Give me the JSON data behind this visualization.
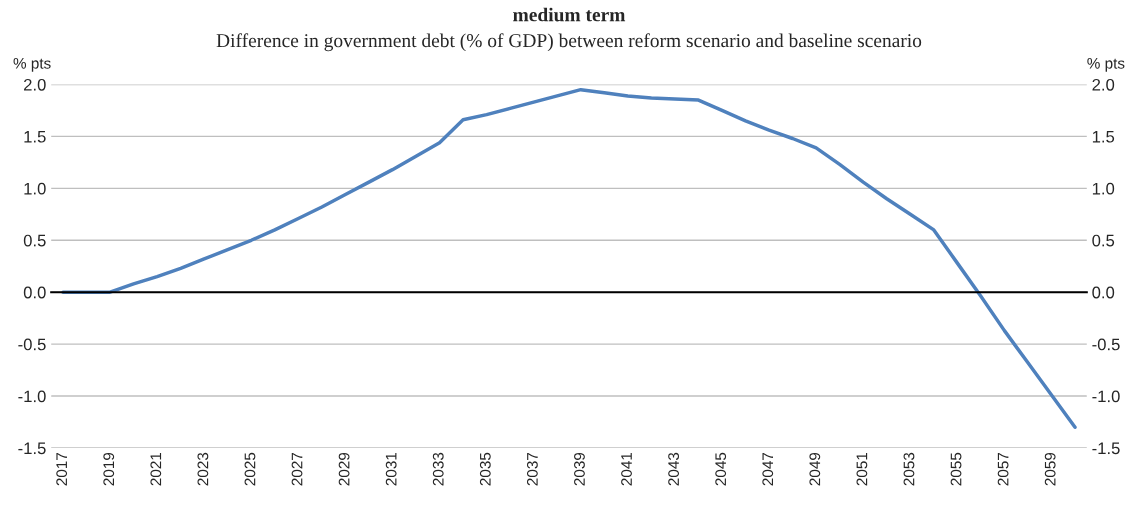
{
  "chart_data": {
    "type": "line",
    "title": "medium term",
    "subtitle": "Difference in government debt (% of GDP) between reform scenario and baseline scenario",
    "ylabel": "% pts",
    "y2label": "% pts",
    "categories": [
      "2017",
      null,
      "2019",
      null,
      "2021",
      null,
      "2023",
      null,
      "2025",
      null,
      "2027",
      null,
      "2029",
      null,
      "2031",
      null,
      "2033",
      null,
      "2035",
      null,
      "2037",
      null,
      "2039",
      null,
      "2041",
      null,
      "2043",
      null,
      "2045",
      null,
      "2047",
      null,
      "2049",
      null,
      "2051",
      null,
      "2053",
      null,
      "2055",
      null,
      "2057",
      null,
      "2059",
      null
    ],
    "series": [
      {
        "color": "#4f81bd",
        "values": [
          0,
          0,
          0,
          0.08,
          0.15,
          0.23,
          0.32,
          0.41,
          0.5,
          0.6,
          0.71,
          0.82,
          0.94,
          1.06,
          1.18,
          1.31,
          1.44,
          1.66,
          1.71,
          1.77,
          1.83,
          1.89,
          1.95,
          1.92,
          1.89,
          1.87,
          1.86,
          1.85,
          1.75,
          1.65,
          1.56,
          1.48,
          1.39,
          1.23,
          1.06,
          0.9,
          0.75,
          0.6,
          0.28,
          -0.04,
          -0.37,
          -0.68,
          -0.99,
          -1.3
        ]
      }
    ],
    "ylim": [
      -1.5,
      2.0
    ],
    "yticks": [
      {
        "value": -1.5,
        "label": "-1.5"
      },
      {
        "value": -1.0,
        "label": "-1.0"
      },
      {
        "value": -0.5,
        "label": "-0.5"
      },
      {
        "value": 0,
        "label": "0.0"
      },
      {
        "value": 0.5,
        "label": "0.5"
      },
      {
        "value": 1.0,
        "label": "1.0"
      },
      {
        "value": 1.5,
        "label": "1.5"
      },
      {
        "value": 2.0,
        "label": "2.0"
      }
    ],
    "y2lim": [
      -1.5,
      2.0
    ],
    "y2ticks": [
      {
        "value": -1.5,
        "label": "-1.5"
      },
      {
        "value": -1.0,
        "label": "-1.0"
      },
      {
        "value": -0.5,
        "label": "-0.5"
      },
      {
        "value": 0,
        "label": "0.0"
      },
      {
        "value": 0.5,
        "label": "0.5"
      },
      {
        "value": 1.0,
        "label": "1.0"
      },
      {
        "value": 1.5,
        "label": "1.5"
      },
      {
        "value": 2.0,
        "label": "2.0"
      }
    ],
    "grid": "y",
    "legend": false
  }
}
